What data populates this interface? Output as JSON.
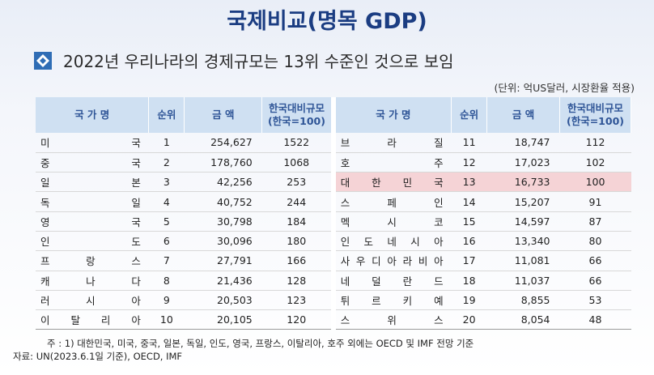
{
  "title": "국제비교(명목 GDP)",
  "subtitle": "2022년 우리나라의 경제규모는 13위 수준인 것으로 보임",
  "unit": "(단위: 억US달러, 시장환율 적용)",
  "headers": {
    "country": "국 가 명",
    "rank": "순위",
    "amount": "금 액",
    "relative_line1": "한국대비규모",
    "relative_line2": "(한국=100)"
  },
  "left_rows": [
    {
      "country": "미국",
      "rank": "1",
      "amount": "254,627",
      "relative": "1522"
    },
    {
      "country": "중국",
      "rank": "2",
      "amount": "178,760",
      "relative": "1068"
    },
    {
      "country": "일본",
      "rank": "3",
      "amount": "42,256",
      "relative": "253"
    },
    {
      "country": "독일",
      "rank": "4",
      "amount": "40,752",
      "relative": "244"
    },
    {
      "country": "영국",
      "rank": "5",
      "amount": "30,798",
      "relative": "184"
    },
    {
      "country": "인도",
      "rank": "6",
      "amount": "30,096",
      "relative": "180"
    },
    {
      "country": "프랑스",
      "rank": "7",
      "amount": "27,791",
      "relative": "166"
    },
    {
      "country": "캐나다",
      "rank": "8",
      "amount": "21,436",
      "relative": "128"
    },
    {
      "country": "러시아",
      "rank": "9",
      "amount": "20,503",
      "relative": "123"
    },
    {
      "country": "이탈리아",
      "rank": "10",
      "amount": "20,105",
      "relative": "120"
    }
  ],
  "right_rows": [
    {
      "country": "브라질",
      "rank": "11",
      "amount": "18,747",
      "relative": "112",
      "highlight": false
    },
    {
      "country": "호주",
      "rank": "12",
      "amount": "17,023",
      "relative": "102",
      "highlight": false
    },
    {
      "country": "대한민국",
      "rank": "13",
      "amount": "16,733",
      "relative": "100",
      "highlight": true
    },
    {
      "country": "스페인",
      "rank": "14",
      "amount": "15,207",
      "relative": "91",
      "highlight": false
    },
    {
      "country": "멕시코",
      "rank": "15",
      "amount": "14,597",
      "relative": "87",
      "highlight": false
    },
    {
      "country": "인도네시아",
      "rank": "16",
      "amount": "13,340",
      "relative": "80",
      "highlight": false
    },
    {
      "country": "사우디아라비아",
      "rank": "17",
      "amount": "11,081",
      "relative": "66",
      "highlight": false
    },
    {
      "country": "네덜란드",
      "rank": "18",
      "amount": "11,037",
      "relative": "66",
      "highlight": false
    },
    {
      "country": "튀르키예",
      "rank": "19",
      "amount": "8,855",
      "relative": "53",
      "highlight": false
    },
    {
      "country": "스위스",
      "rank": "20",
      "amount": "8,054",
      "relative": "48",
      "highlight": false
    }
  ],
  "note": "주 : 1) 대한민국, 미국, 중국, 일본, 독일, 인도, 영국, 프랑스, 이탈리아, 호주 외에는 OECD 및 IMF 전망 기준",
  "source": "자료: UN(2023.6.1일 기준), OECD, IMF",
  "colors": {
    "title": "#1b3d82",
    "header_bg": "#cfe0f2",
    "header_text": "#2f5597",
    "highlight_bg": "#f5d3d6",
    "country_text": "#6a6a1a"
  }
}
